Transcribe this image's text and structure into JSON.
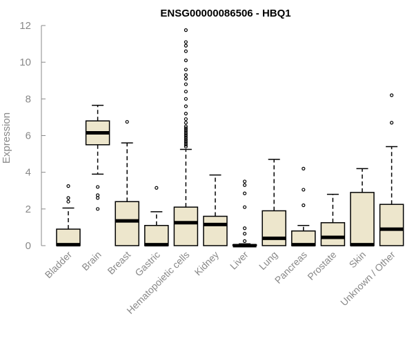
{
  "chart_data": {
    "type": "box",
    "title": "ENSG00000086506 - HBQ1",
    "xlabel": "",
    "ylabel": "Expression",
    "ylim": [
      0,
      12
    ],
    "yticks": [
      0,
      2,
      4,
      6,
      8,
      10,
      12
    ],
    "box_fill": "#ede6cc",
    "categories": [
      "Bladder",
      "Brain",
      "Breast",
      "Gastric",
      "Hematopoietic cells",
      "Kidney",
      "Liver",
      "Lung",
      "Pancreas",
      "Prostate",
      "Skin",
      "Unknown / Other"
    ],
    "boxes": [
      {
        "q1": 0.0,
        "median": 0.05,
        "q3": 0.9,
        "whisker_low": 0.0,
        "whisker_high": 2.05,
        "outliers": [
          2.4,
          2.6,
          3.25
        ]
      },
      {
        "q1": 5.5,
        "median": 6.15,
        "q3": 6.8,
        "whisker_low": 3.9,
        "whisker_high": 7.65,
        "outliers": [
          2.0,
          2.6,
          2.75,
          3.2
        ]
      },
      {
        "q1": 0.0,
        "median": 1.35,
        "q3": 2.4,
        "whisker_low": 0.0,
        "whisker_high": 5.6,
        "outliers": [
          6.75
        ]
      },
      {
        "q1": 0.0,
        "median": 0.05,
        "q3": 1.1,
        "whisker_low": 0.0,
        "whisker_high": 1.85,
        "outliers": [
          3.15
        ]
      },
      {
        "q1": 0.0,
        "median": 1.25,
        "q3": 2.1,
        "whisker_low": 0.0,
        "whisker_high": 5.25,
        "outliers": [
          5.4,
          5.5,
          5.6,
          5.7,
          5.8,
          5.9,
          6.0,
          6.1,
          6.2,
          6.3,
          6.4,
          6.5,
          6.7,
          6.9,
          7.2,
          7.6,
          8.0,
          8.4,
          8.8,
          9.1,
          9.3,
          9.6,
          10.1,
          10.6,
          10.9,
          11.1,
          11.75
        ]
      },
      {
        "q1": 0.0,
        "median": 1.15,
        "q3": 1.6,
        "whisker_low": 0.0,
        "whisker_high": 3.85,
        "outliers": []
      },
      {
        "q1": 0.0,
        "median": 0.0,
        "q3": 0.05,
        "whisker_low": 0.0,
        "whisker_high": 0.1,
        "outliers": [
          0.25,
          0.65,
          0.95,
          2.1,
          2.85,
          3.3,
          3.5
        ]
      },
      {
        "q1": 0.0,
        "median": 0.4,
        "q3": 1.9,
        "whisker_low": 0.0,
        "whisker_high": 4.7,
        "outliers": []
      },
      {
        "q1": 0.0,
        "median": 0.05,
        "q3": 0.8,
        "whisker_low": 0.0,
        "whisker_high": 1.1,
        "outliers": [
          2.2,
          3.05,
          4.2
        ]
      },
      {
        "q1": 0.0,
        "median": 0.45,
        "q3": 1.25,
        "whisker_low": 0.0,
        "whisker_high": 2.8,
        "outliers": []
      },
      {
        "q1": 0.0,
        "median": 0.05,
        "q3": 2.9,
        "whisker_low": 0.0,
        "whisker_high": 4.2,
        "outliers": []
      },
      {
        "q1": 0.0,
        "median": 0.9,
        "q3": 2.25,
        "whisker_low": 0.0,
        "whisker_high": 5.4,
        "outliers": [
          6.7,
          8.2
        ]
      }
    ]
  }
}
